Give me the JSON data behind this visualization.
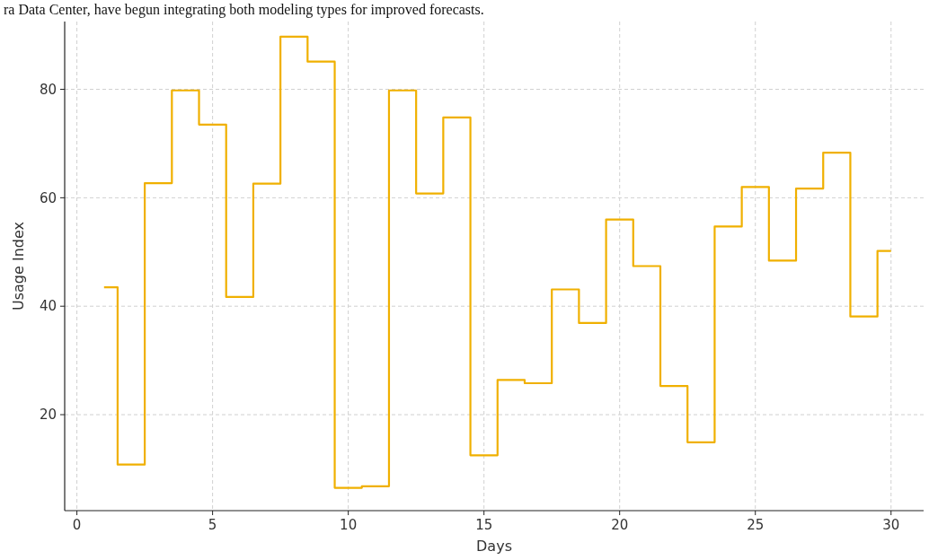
{
  "chart_data": {
    "type": "step",
    "xlabel": "Days",
    "ylabel": "Usage Index",
    "annotations": [
      "ra Data Center, have begun integrating both modeling types for improved forecasts."
    ],
    "x": [
      1,
      2,
      3,
      4,
      5,
      6,
      7,
      8,
      9,
      10,
      11,
      12,
      13,
      14,
      15,
      16,
      17,
      18,
      19,
      20,
      21,
      22,
      23,
      24,
      25,
      26,
      27,
      28,
      29,
      30
    ],
    "series": [
      {
        "color": "#f0b000",
        "values": [
          43.5,
          10.8,
          62.7,
          79.8,
          73.5,
          41.7,
          62.6,
          89.7,
          85.1,
          6.5,
          6.8,
          79.8,
          60.8,
          74.8,
          12.5,
          26.4,
          25.8,
          43.1,
          36.9,
          56.0,
          47.4,
          25.3,
          14.9,
          54.7,
          62.0,
          48.4,
          61.7,
          68.3,
          38.1,
          50.2
        ]
      }
    ],
    "xlim": [
      -0.45,
      31.2
    ],
    "ylim": [
      2.3,
      92.5
    ],
    "xticks": [
      0,
      5,
      10,
      15,
      20,
      25,
      30
    ],
    "yticks": [
      20,
      40,
      60,
      80
    ],
    "grid": true,
    "line_style": "solid",
    "marker": "none"
  }
}
